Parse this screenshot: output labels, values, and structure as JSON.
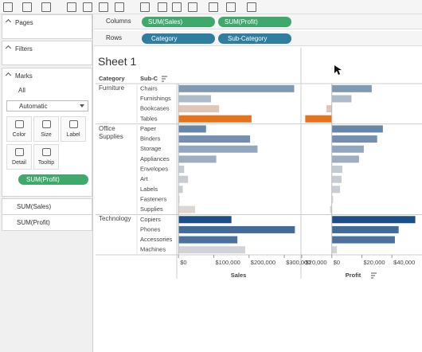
{
  "side_panel": {
    "pages": "Pages",
    "filters": "Filters",
    "marks": "Marks",
    "all": "All",
    "mark_type": "Automatic",
    "buttons": [
      "Color",
      "Size",
      "Label",
      "Detail",
      "Tooltip"
    ],
    "color_pill": "SUM(Profit)",
    "legends": [
      "SUM(Sales)",
      "SUM(Profit)"
    ]
  },
  "shelves": {
    "columns_label": "Columns",
    "columns": [
      "SUM(Sales)",
      "SUM(Profit)"
    ],
    "rows_label": "Rows",
    "rows": [
      "Category",
      "Sub-Category"
    ]
  },
  "sheet": {
    "title": "Sheet 1",
    "headers": [
      "Category",
      "Sub-C"
    ],
    "color": {
      "negative": "#e8731d",
      "zero": "#dcdcdc",
      "positive": "#1c4f8a"
    },
    "groups": [
      {
        "category": "Furniture",
        "subcategories": [
          "Chairs",
          "Furnishings",
          "Bookcases",
          "Tables"
        ],
        "sales": [
          328000,
          92000,
          115000,
          207000
        ],
        "profit": [
          26600,
          13100,
          -3500,
          -17700
        ]
      },
      {
        "category": "Office Supplies",
        "subcategories": [
          "Paper",
          "Binders",
          "Storage",
          "Appliances",
          "Envelopes",
          "Art",
          "Labels",
          "Fasteners",
          "Supplies"
        ],
        "sales": [
          78000,
          203000,
          224000,
          107000,
          16000,
          27000,
          12000,
          3000,
          47000
        ],
        "profit": [
          34000,
          30200,
          21300,
          18100,
          7000,
          6500,
          5500,
          900,
          -1200
        ]
      },
      {
        "category": "Technology",
        "subcategories": [
          "Copiers",
          "Phones",
          "Accessories",
          "Machines"
        ],
        "sales": [
          150000,
          330000,
          167000,
          189000
        ],
        "profit": [
          55600,
          44500,
          42000,
          3400
        ]
      }
    ],
    "sales_axis": {
      "title": "Sales",
      "xlim": [
        -5000,
        345000
      ],
      "xticks": [
        {
          "value": 0,
          "label": "$0"
        },
        {
          "value": 100000,
          "label": "$100,000"
        },
        {
          "value": 200000,
          "label": "$200,000"
        },
        {
          "value": 300000,
          "label": "$300,000"
        }
      ]
    },
    "profit_axis": {
      "title": "Profit",
      "xlim": [
        -20000,
        59000
      ],
      "xticks": [
        {
          "value": -20000,
          "label": "-$20,000"
        },
        {
          "value": 0,
          "label": "$0"
        },
        {
          "value": 20000,
          "label": "$20,000"
        },
        {
          "value": 40000,
          "label": "$40,000"
        }
      ]
    }
  }
}
